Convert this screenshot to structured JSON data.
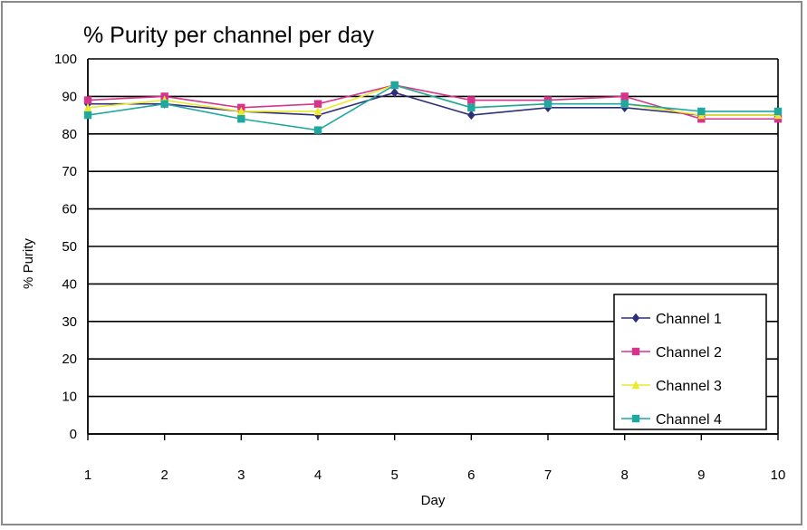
{
  "chart_data": {
    "type": "line",
    "title": "% Purity per channel per day",
    "xlabel": "Day",
    "ylabel": "% Purity",
    "x": [
      1,
      2,
      3,
      4,
      5,
      6,
      7,
      8,
      9,
      10
    ],
    "ylim": [
      0,
      100
    ],
    "yticks": [
      0,
      10,
      20,
      30,
      40,
      50,
      60,
      70,
      80,
      90,
      100
    ],
    "grid": "horizontal",
    "legend_position": "bottom-right",
    "series": [
      {
        "name": "Channel 1",
        "color": "#2e2e7a",
        "marker": "diamond",
        "values": [
          88,
          88,
          86,
          85,
          91,
          85,
          87,
          87,
          85,
          85
        ]
      },
      {
        "name": "Channel 2",
        "color": "#d6348c",
        "marker": "square",
        "values": [
          89,
          90,
          87,
          88,
          93,
          89,
          89,
          90,
          84,
          84
        ]
      },
      {
        "name": "Channel 3",
        "color": "#eaea2a",
        "marker": "triangle",
        "values": [
          87,
          89,
          86,
          86,
          93,
          87,
          88,
          88,
          85,
          85
        ]
      },
      {
        "name": "Channel 4",
        "color": "#1ea8a0",
        "marker": "square",
        "values": [
          85,
          88,
          84,
          81,
          93,
          87,
          88,
          88,
          86,
          86
        ]
      }
    ]
  }
}
